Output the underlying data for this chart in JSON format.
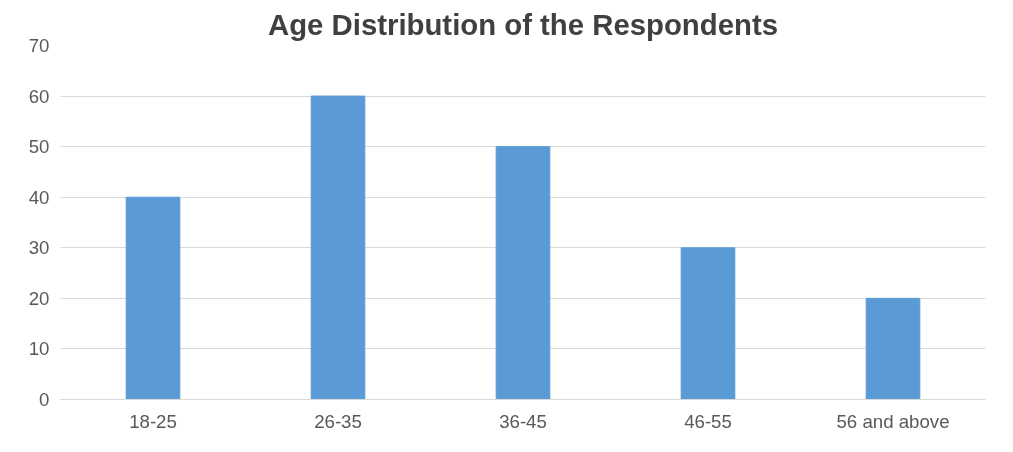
{
  "chart_data": {
    "type": "bar",
    "title": "Age Distribution of the Respondents",
    "categories": [
      "18-25",
      "26-35",
      "36-45",
      "46-55",
      "56 and above"
    ],
    "values": [
      40,
      60,
      50,
      30,
      20
    ],
    "color": "#5b9bd5",
    "ylim": [
      0,
      70
    ],
    "yticks": [
      0,
      10,
      20,
      30,
      40,
      50,
      60,
      70
    ],
    "grid": "y"
  }
}
